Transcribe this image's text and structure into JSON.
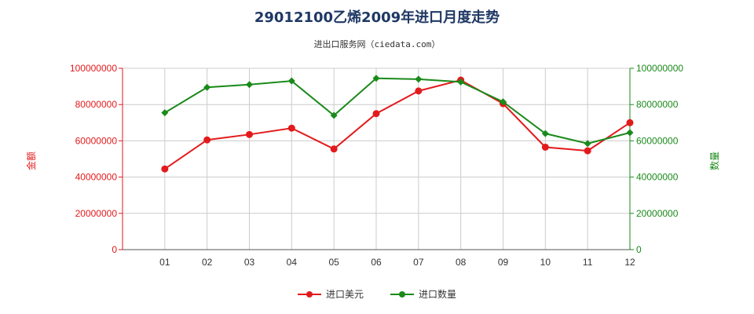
{
  "chart_data": {
    "type": "line",
    "title": "29012100乙烯2009年进口月度走势",
    "subtitle": "进出口服务网（ciedata.com）",
    "categories": [
      "01",
      "02",
      "03",
      "04",
      "05",
      "06",
      "07",
      "08",
      "09",
      "10",
      "11",
      "12"
    ],
    "y_left_label": "金额",
    "y_right_label": "数量",
    "y_left_ticks": [
      "0",
      "20000000",
      "40000000",
      "60000000",
      "80000000",
      "100000000"
    ],
    "y_right_ticks": [
      "0",
      "20000000",
      "40000000",
      "60000000",
      "80000000",
      "100000000"
    ],
    "ylim": [
      0,
      100000000
    ],
    "grid": true,
    "legend_position": "bottom",
    "series": [
      {
        "name": "进口美元",
        "color": "#e31a1c",
        "axis": "left",
        "values": [
          44500000,
          60500000,
          63500000,
          67000000,
          55500000,
          75000000,
          87500000,
          93500000,
          80500000,
          56500000,
          54500000,
          70000000
        ]
      },
      {
        "name": "进口数量",
        "color": "#1a8a1a",
        "axis": "right",
        "values": [
          75500000,
          89500000,
          91000000,
          93000000,
          74000000,
          94500000,
          94000000,
          92500000,
          81500000,
          64000000,
          58500000,
          64500000
        ]
      }
    ]
  }
}
